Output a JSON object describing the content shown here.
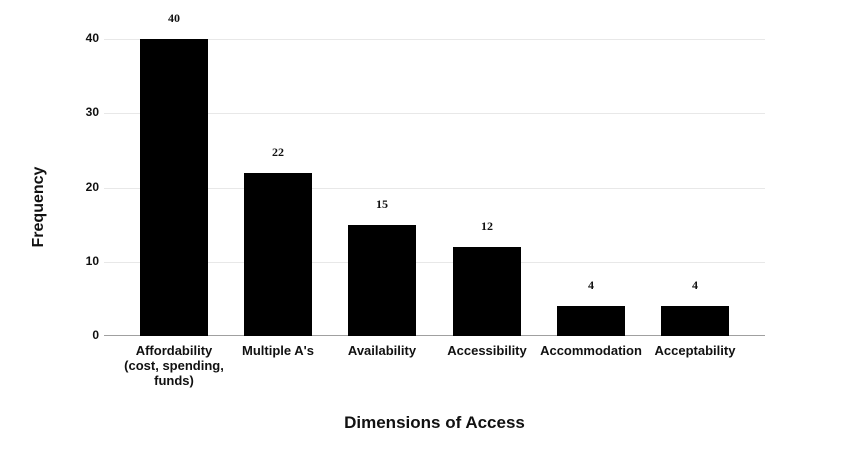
{
  "figure": {
    "background": "#ffffff",
    "bar_color": "#000000",
    "gridline_color": "#e8e8e8",
    "axisline_color": "#a0a0a0",
    "text_color": "#111111"
  },
  "chart_data": {
    "type": "bar",
    "title": "",
    "xlabel": "Dimensions of Access",
    "ylabel": "Frequency",
    "categories": [
      "Affordability\n(cost, spending,\nfunds)",
      "Multiple A's",
      "Availability",
      "Accessibility",
      "Accommodation",
      "Acceptability"
    ],
    "values": [
      40,
      22,
      15,
      12,
      4,
      4
    ],
    "data_labels": [
      "40",
      "22",
      "15",
      "12",
      "4",
      "4"
    ],
    "y_ticks": [
      0,
      10,
      20,
      30,
      40
    ],
    "ylim": [
      0,
      40
    ],
    "grid": "horizontal-light",
    "legend": "none"
  }
}
